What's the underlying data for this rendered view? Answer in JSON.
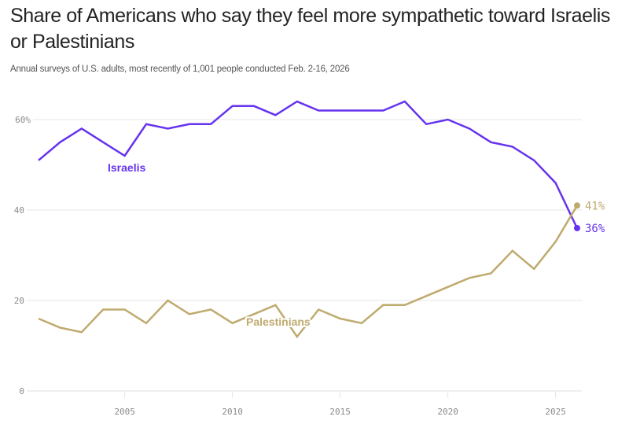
{
  "header": {
    "title": "Share of Americans who say they feel more sympathetic toward Israelis or Palestinians",
    "subtitle": "Annual surveys of U.S. adults, most recently of 1,001 people conducted Feb. 2-16, 2026"
  },
  "chart_data": {
    "type": "line",
    "title": "Share of Americans who say they feel more sympathetic toward Israelis or Palestinians",
    "subtitle": "Annual surveys of U.S. adults, most recently of 1,001 people conducted Feb. 2-16, 2026",
    "xlabel": "",
    "ylabel": "",
    "x": [
      2001,
      2002,
      2003,
      2004,
      2005,
      2006,
      2007,
      2008,
      2009,
      2010,
      2011,
      2012,
      2013,
      2014,
      2015,
      2016,
      2017,
      2018,
      2019,
      2020,
      2021,
      2022,
      2023,
      2024,
      2025,
      2026
    ],
    "xlim": [
      2001,
      2026
    ],
    "ylim": [
      0,
      60
    ],
    "x_ticks": [
      2005,
      2010,
      2015,
      2020,
      2025
    ],
    "x_tick_labels": [
      "2005",
      "2010",
      "2015",
      "2020",
      "2025"
    ],
    "y_ticks": [
      0,
      20,
      40,
      60
    ],
    "y_tick_labels": [
      "0",
      "20",
      "40",
      "60%"
    ],
    "grid": "horizontal",
    "legend": "inline labels",
    "series": [
      {
        "name": "Israelis",
        "color": "#6633ee",
        "values": [
          51,
          55,
          58,
          55,
          52,
          59,
          58,
          59,
          59,
          63,
          63,
          61,
          64,
          62,
          62,
          62,
          62,
          64,
          59,
          60,
          58,
          55,
          54,
          51,
          46,
          36
        ],
        "end_label": "36%"
      },
      {
        "name": "Palestinians",
        "color": "#bfaa6e",
        "values": [
          16,
          14,
          13,
          18,
          18,
          15,
          20,
          17,
          18,
          15,
          17,
          19,
          12,
          18,
          16,
          15,
          19,
          19,
          21,
          23,
          25,
          26,
          31,
          27,
          33,
          41
        ],
        "end_label": "41%"
      }
    ]
  }
}
